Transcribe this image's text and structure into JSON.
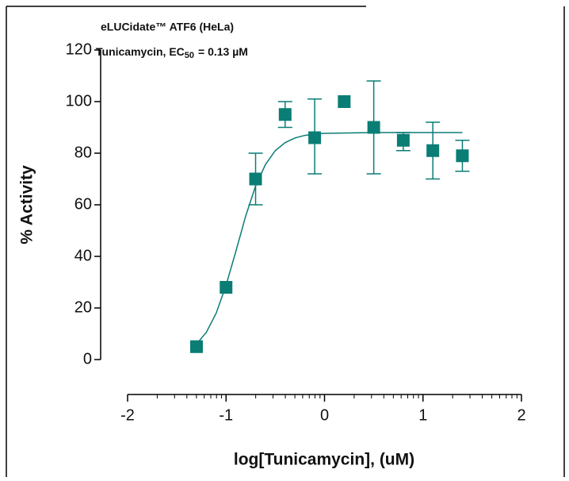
{
  "chart_data": {
    "type": "scatter",
    "title": "eLUCidate™ ATF6 (HeLa)",
    "subtitle": {
      "prefix": "Tunicamycin, EC",
      "subscript": "50",
      "suffix": "= 0.13 µM"
    },
    "xlabel": "log[Tunicamycin], (uM)",
    "ylabel": "% Activity",
    "xlim": [
      -2,
      2
    ],
    "xticks": [
      -2,
      -1,
      0,
      1,
      2
    ],
    "ylim": [
      0,
      120
    ],
    "yticks": [
      0,
      20,
      40,
      60,
      80,
      100,
      120
    ],
    "series": [
      {
        "kind": "points",
        "color": "#0a7d75",
        "x": [
          -1.3,
          -1,
          -0.7,
          -0.4,
          -0.1,
          0.2,
          0.5,
          0.8,
          1.1,
          1.4
        ],
        "values": [
          5,
          28,
          70,
          95,
          86,
          100,
          90,
          85,
          81,
          79
        ],
        "lower": [
          null,
          null,
          60,
          90,
          72,
          null,
          72,
          81,
          70,
          73
        ],
        "upper": [
          null,
          null,
          80,
          100,
          101,
          null,
          108,
          88,
          92,
          85
        ]
      },
      {
        "kind": "fit",
        "color": "#0a7d75",
        "x": [
          -1.3,
          -1.2,
          -1.1,
          -1,
          -0.9,
          -0.8,
          -0.7,
          -0.6,
          -0.5,
          -0.4,
          -0.3,
          -0.2,
          -0.1,
          0,
          0.5,
          1,
          1.4
        ],
        "values": [
          6,
          10.6,
          18,
          28.8,
          42,
          55.7,
          67.3,
          75.6,
          81,
          84.1,
          85.9,
          86.9,
          87.4,
          87.7,
          88,
          88,
          88
        ]
      }
    ]
  }
}
